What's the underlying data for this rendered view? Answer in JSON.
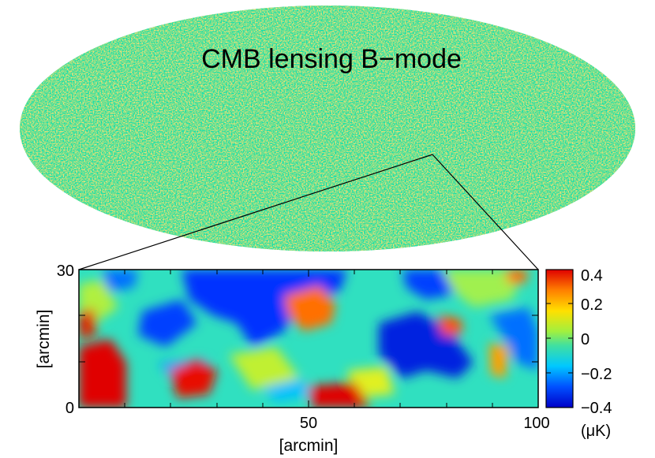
{
  "figure": {
    "title": "CMB lensing B−mode",
    "sky_map": {
      "projection": "mollweide",
      "colormap": "jet"
    },
    "zoom_panel": {
      "x_label": "[arcmin]",
      "y_label": "[arcmin]",
      "x_ticks": [
        "50",
        "100"
      ],
      "y_ticks": [
        "30",
        "0"
      ],
      "y_tick_values": [
        30,
        0
      ],
      "x_tick_values": [
        50,
        100
      ],
      "x_range": [
        0,
        100
      ],
      "y_range": [
        0,
        30
      ]
    },
    "colorbar": {
      "ticks": [
        "0.4",
        "0.2",
        "0",
        "−0.2",
        "−0.4"
      ],
      "tick_values": [
        0.4,
        0.2,
        0,
        -0.2,
        -0.4
      ],
      "unit": "(μK)",
      "range": [
        -0.4,
        0.4
      ],
      "colors": [
        "#0000c8",
        "#0050ff",
        "#00c8ff",
        "#40e0a0",
        "#a0f040",
        "#ffe000",
        "#ff8000",
        "#e00000"
      ]
    }
  }
}
